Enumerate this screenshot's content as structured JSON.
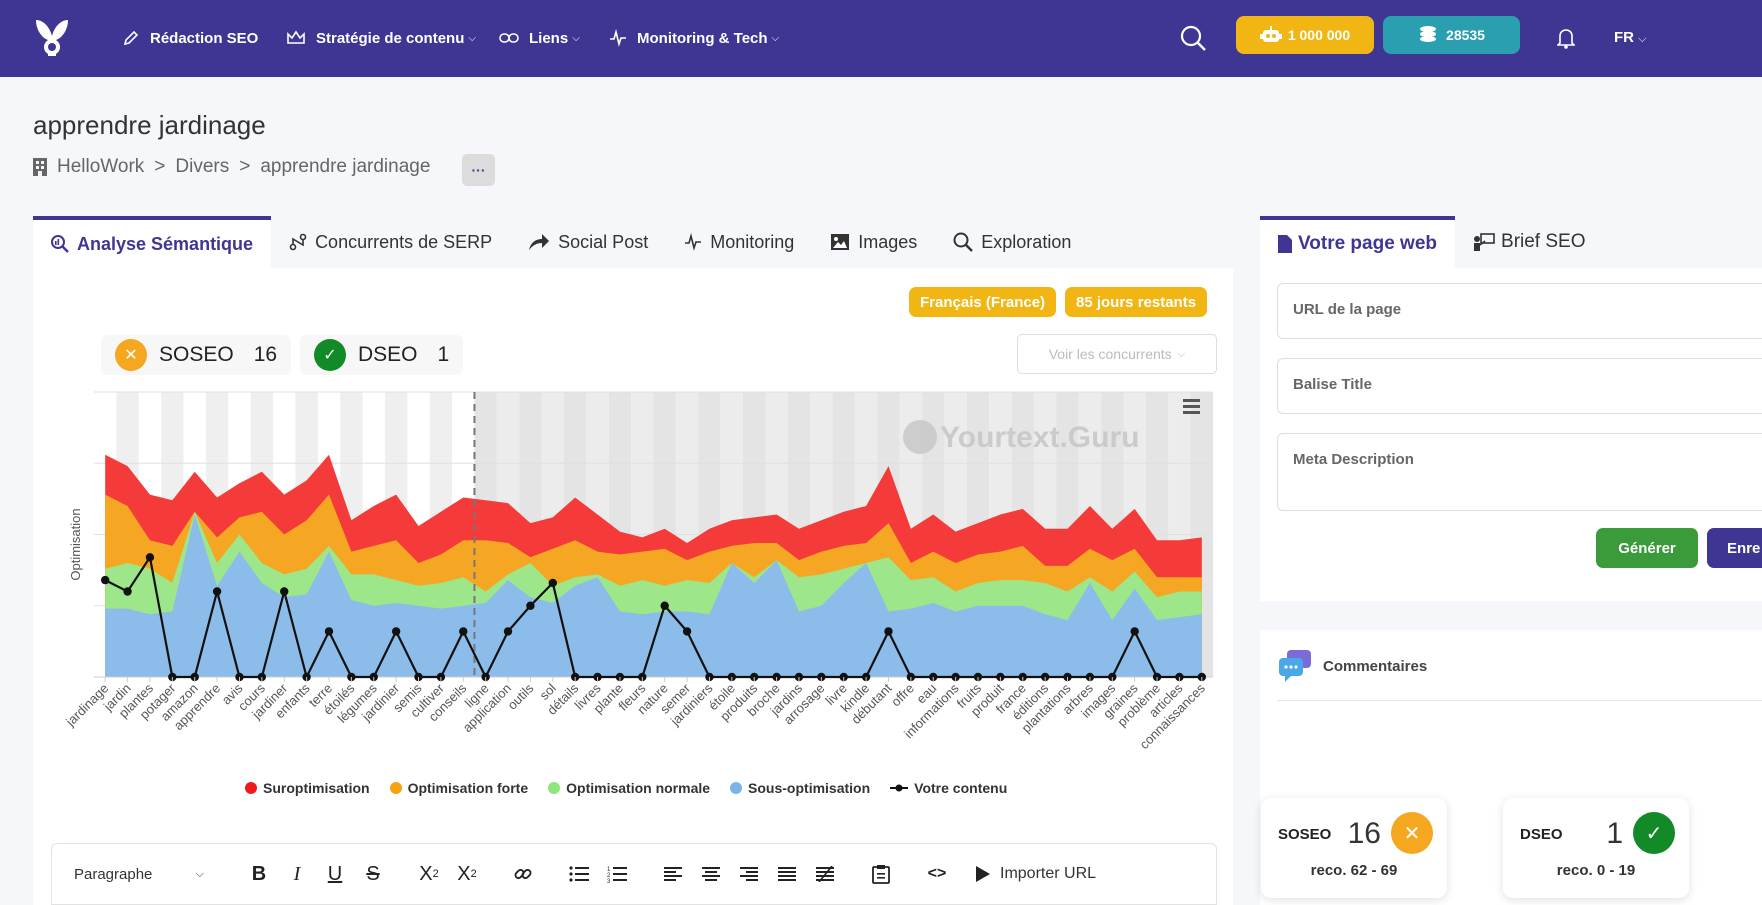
{
  "nav": {
    "items": [
      {
        "label": "Rédaction SEO",
        "icon": "pen-icon",
        "caret": false
      },
      {
        "label": "Stratégie de contenu",
        "icon": "crown-icon",
        "caret": true
      },
      {
        "label": "Liens",
        "icon": "link-icon",
        "caret": true
      },
      {
        "label": "Monitoring & Tech",
        "icon": "pulse-icon",
        "caret": true
      }
    ],
    "credits": "1 000 000",
    "coins": "28535",
    "lang": "FR"
  },
  "page": {
    "title": "apprendre jardinage",
    "breadcrumb": [
      "HelloWork",
      "Divers",
      "apprendre jardinage"
    ],
    "more": "···"
  },
  "tabs": [
    "Analyse Sémantique",
    "Concurrents de SERP",
    "Social Post",
    "Monitoring",
    "Images",
    "Exploration"
  ],
  "badges": {
    "lang": "Français (France)",
    "days": "85 jours restants"
  },
  "scores": {
    "soseo_label": "SOSEO",
    "soseo_value": "16",
    "dseo_label": "DSEO",
    "dseo_value": "1"
  },
  "competitors_select": "Voir les concurrents",
  "chart_data": {
    "type": "area",
    "ylabel": "Optimisation",
    "watermark": "Yourtext.Guru",
    "ylim": [
      0,
      100
    ],
    "categories": [
      "jardinage",
      "jardin",
      "plantes",
      "potager",
      "amazon",
      "apprendre",
      "avis",
      "cours",
      "jardiner",
      "enfants",
      "terre",
      "étoilés",
      "légumes",
      "jardinier",
      "semis",
      "cultiver",
      "conseils",
      "ligne",
      "application",
      "outils",
      "sol",
      "détails",
      "livres",
      "plante",
      "fleurs",
      "nature",
      "semer",
      "jardiniers",
      "étoile",
      "produits",
      "broche",
      "jardins",
      "arrosage",
      "livre",
      "kindle",
      "débutant",
      "offre",
      "eau",
      "informations",
      "fruits",
      "produit",
      "france",
      "éditions",
      "plantations",
      "arbres",
      "images",
      "graines",
      "problème",
      "articles",
      "connaissances"
    ],
    "series": [
      {
        "name": "Suroptimisation",
        "color": "#f53a3a",
        "values": [
          78,
          74,
          64,
          62,
          72,
          63,
          68,
          72,
          64,
          69,
          78,
          55,
          60,
          64,
          53,
          58,
          63,
          62,
          61,
          54,
          56,
          63,
          57,
          51,
          49,
          52,
          47,
          52,
          55,
          56,
          57,
          52,
          55,
          58,
          60,
          74,
          52,
          57,
          51,
          54,
          57,
          59,
          52,
          52,
          60,
          52,
          59,
          48,
          48,
          49
        ]
      },
      {
        "name": "Optimisation forte",
        "color": "#f5a623",
        "values": [
          64,
          60,
          48,
          46,
          58,
          49,
          56,
          58,
          50,
          55,
          64,
          44,
          46,
          48,
          40,
          43,
          48,
          48,
          47,
          42,
          45,
          48,
          44,
          43,
          44,
          45,
          41,
          44,
          46,
          47,
          47,
          41,
          44,
          46,
          47,
          54,
          40,
          44,
          40,
          43,
          44,
          46,
          39,
          39,
          45,
          41,
          45,
          35,
          35,
          35
        ]
      },
      {
        "name": "Optimisation normale",
        "color": "#9ee68a",
        "values": [
          38,
          40,
          38,
          33,
          58,
          40,
          50,
          40,
          36,
          38,
          46,
          36,
          36,
          34,
          32,
          33,
          35,
          30,
          36,
          40,
          32,
          35,
          36,
          32,
          34,
          32,
          34,
          33,
          40,
          35,
          41,
          35,
          36,
          38,
          40,
          42,
          34,
          35,
          30,
          33,
          34,
          34,
          33,
          30,
          35,
          30,
          37,
          28,
          30,
          30
        ]
      },
      {
        "name": "Sous-optimisation",
        "color": "#8cbcea",
        "values": [
          24,
          24,
          22,
          23,
          57,
          32,
          44,
          33,
          28,
          29,
          44,
          27,
          25,
          26,
          25,
          24,
          25,
          26,
          34,
          28,
          26,
          32,
          35,
          23,
          22,
          23,
          23,
          22,
          40,
          33,
          41,
          23,
          25,
          33,
          40,
          23,
          24,
          26,
          23,
          25,
          25,
          25,
          22,
          20,
          33,
          20,
          31,
          20,
          21,
          22
        ]
      },
      {
        "name": "Votre contenu",
        "color": "#111111",
        "values": [
          34,
          30,
          42,
          0,
          0,
          30,
          0,
          0,
          30,
          0,
          16,
          0,
          0,
          16,
          0,
          0,
          16,
          0,
          16,
          25,
          33,
          0,
          0,
          0,
          0,
          25,
          16,
          0,
          0,
          0,
          0,
          0,
          0,
          0,
          0,
          16,
          0,
          0,
          0,
          0,
          0,
          0,
          0,
          0,
          0,
          0,
          16,
          0,
          0,
          0
        ]
      }
    ],
    "divider_index": 16.5,
    "legend_placement": "bottom"
  },
  "editor": {
    "paragraph": "Paragraphe",
    "import_url": "Importer URL"
  },
  "right": {
    "tabs": [
      "Votre page web",
      "Brief SEO"
    ],
    "url_placeholder": "URL de la page",
    "title_placeholder": "Balise Title",
    "meta_placeholder": "Meta Description",
    "generate": "Générer",
    "save": "Enre",
    "comments": "Commentaires",
    "soseo_label": "SOSEO",
    "soseo_value": "16",
    "soseo_reco": "reco. 62 - 69",
    "dseo_label": "DSEO",
    "dseo_value": "1",
    "dseo_reco": "reco. 0 - 19"
  }
}
